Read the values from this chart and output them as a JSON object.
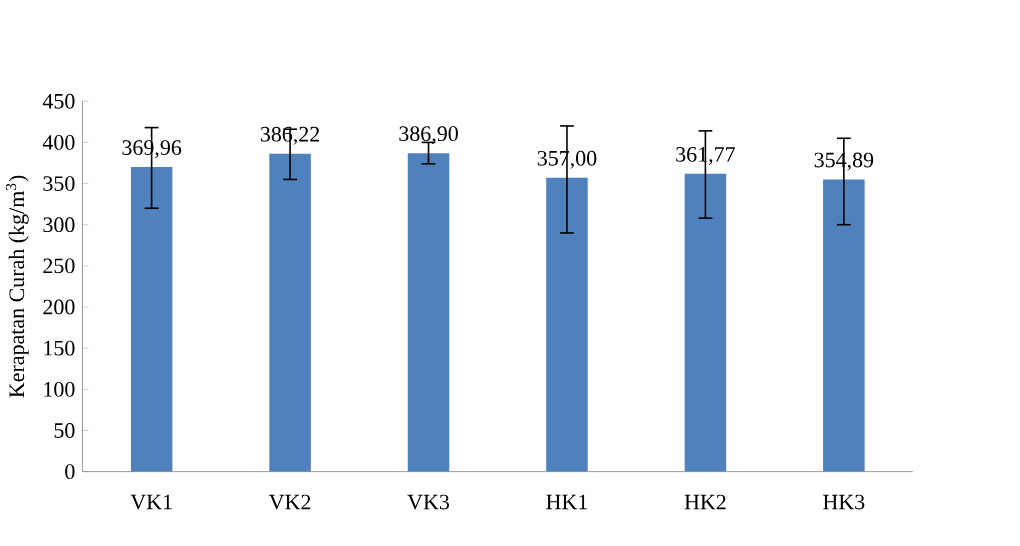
{
  "chart_data": {
    "type": "bar",
    "ylabel": "Kerapatan Curah (kg/m$^{3}$)",
    "categories": [
      "VK1",
      "VK2",
      "VK3",
      "HK1",
      "HK2",
      "HK3"
    ],
    "values": [
      369.96,
      386.22,
      386.9,
      357.0,
      361.77,
      354.89
    ],
    "value_labels": [
      "369,96",
      "386,22",
      "386,90",
      "357,00",
      "361,77",
      "354,89"
    ],
    "errors": [
      [
        320,
        418
      ],
      [
        355,
        416
      ],
      [
        374,
        400
      ],
      [
        290,
        420
      ],
      [
        308,
        414
      ],
      [
        300,
        405
      ]
    ],
    "color": "#4f81bd",
    "ylim": [
      0,
      450
    ],
    "yticks": [
      0,
      50,
      100,
      150,
      200,
      250,
      300,
      350,
      400,
      450
    ],
    "grid": false
  }
}
